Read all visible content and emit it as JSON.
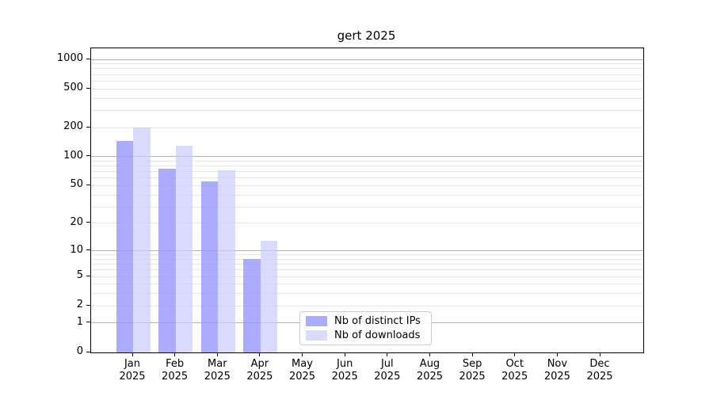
{
  "chart_data": {
    "type": "bar",
    "title": "gert 2025",
    "categories": [
      "Jan",
      "Feb",
      "Mar",
      "Apr",
      "May",
      "Jun",
      "Jul",
      "Aug",
      "Sep",
      "Oct",
      "Nov",
      "Dec"
    ],
    "category_year": "2025",
    "series": [
      {
        "name": "Nb of distinct IPs",
        "color": "#9999ff",
        "alpha": 0.82,
        "values": [
          145,
          75,
          56,
          8,
          0,
          0,
          0,
          0,
          0,
          0,
          0,
          0
        ]
      },
      {
        "name": "Nb of downloads",
        "color": "#ccccff",
        "alpha": 0.7,
        "values": [
          200,
          130,
          72,
          13,
          0,
          0,
          0,
          0,
          0,
          0,
          0,
          0
        ]
      }
    ],
    "yscale": "log1p",
    "yticks": [
      0,
      1,
      2,
      5,
      10,
      20,
      50,
      100,
      200,
      500,
      1000
    ],
    "ylim": [
      0,
      1300
    ],
    "xlabel": "",
    "ylabel": "",
    "grid": {
      "minor_color": "#e6e6e6",
      "major_color": "#b3b3b3",
      "major_at": [
        1,
        10,
        100,
        1000
      ]
    },
    "legend": {
      "position": "lower-center"
    },
    "axis_color": "#000000",
    "background_color": "#ffffff"
  }
}
